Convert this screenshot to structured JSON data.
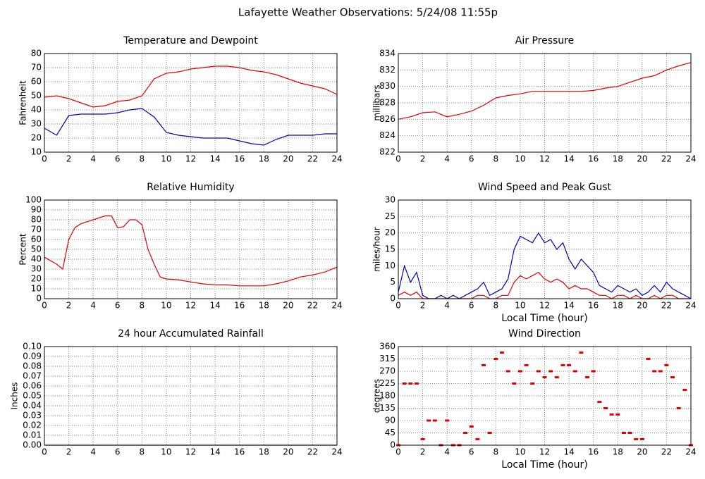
{
  "title": "Lafayette Weather Observations: 5/24/08 11:55p",
  "chart_data": [
    {
      "type": "line",
      "title": "Temperature and Dewpoint",
      "ylabel": "Fahrenheit",
      "x": [
        0,
        1,
        2,
        3,
        4,
        5,
        6,
        7,
        8,
        9,
        10,
        11,
        12,
        13,
        14,
        15,
        16,
        17,
        18,
        19,
        20,
        21,
        22,
        23,
        24
      ],
      "series": [
        {
          "color": "#e00000",
          "values": [
            49,
            50,
            48,
            45,
            42,
            43,
            46,
            47,
            50,
            62,
            66,
            67,
            69,
            70,
            71,
            71,
            70,
            68,
            67,
            65,
            62,
            59,
            57,
            55,
            51
          ]
        },
        {
          "color": "#0000c0",
          "values": [
            27,
            22,
            36,
            37,
            37,
            37,
            38,
            40,
            41,
            35,
            24,
            22,
            21,
            20,
            20,
            20,
            18,
            16,
            15,
            19,
            22,
            22,
            22,
            23,
            23
          ]
        }
      ],
      "xlim": [
        0,
        24
      ],
      "ylim": [
        10,
        80
      ],
      "xticks": [
        0,
        2,
        4,
        6,
        8,
        10,
        12,
        14,
        16,
        18,
        20,
        22,
        24
      ],
      "yticks": [
        10,
        20,
        30,
        40,
        50,
        60,
        70,
        80
      ],
      "grid": true
    },
    {
      "type": "line",
      "title": "Air Pressure",
      "ylabel": "millibars",
      "x": [
        0,
        1,
        2,
        3,
        4,
        5,
        6,
        7,
        8,
        9,
        10,
        11,
        12,
        13,
        14,
        15,
        16,
        17,
        18,
        19,
        20,
        21,
        22,
        23,
        24
      ],
      "series": [
        {
          "color": "#e00000",
          "values": [
            826,
            826.3,
            826.8,
            826.9,
            826.3,
            826.6,
            827,
            827.7,
            828.6,
            828.9,
            829.1,
            829.4,
            829.4,
            829.4,
            829.4,
            829.4,
            829.5,
            829.8,
            830,
            830.5,
            831,
            831.3,
            832,
            832.5,
            832.9
          ]
        }
      ],
      "xlim": [
        0,
        24
      ],
      "ylim": [
        822,
        834
      ],
      "xticks": [
        0,
        2,
        4,
        6,
        8,
        10,
        12,
        14,
        16,
        18,
        20,
        22,
        24
      ],
      "yticks": [
        822,
        824,
        826,
        828,
        830,
        832,
        834
      ],
      "grid": true
    },
    {
      "type": "line",
      "title": "Relative Humidity",
      "ylabel": "Percent",
      "x": [
        0,
        1,
        1.5,
        2,
        2.5,
        3,
        4,
        5,
        5.5,
        6,
        6.5,
        7,
        7.5,
        8,
        8.5,
        9,
        9.5,
        10,
        11,
        12,
        13,
        14,
        15,
        16,
        17,
        18,
        19,
        20,
        21,
        22,
        23,
        24
      ],
      "series": [
        {
          "color": "#e00000",
          "values": [
            42,
            35,
            30,
            60,
            72,
            76,
            80,
            84,
            84,
            72,
            73,
            80,
            80,
            75,
            50,
            35,
            22,
            20,
            19,
            17,
            15,
            14,
            14,
            13,
            13,
            13,
            15,
            18,
            22,
            24,
            27,
            32
          ]
        }
      ],
      "xlim": [
        0,
        24
      ],
      "ylim": [
        0,
        100
      ],
      "xticks": [
        0,
        2,
        4,
        6,
        8,
        10,
        12,
        14,
        16,
        18,
        20,
        22,
        24
      ],
      "yticks": [
        0,
        10,
        20,
        30,
        40,
        50,
        60,
        70,
        80,
        90,
        100
      ],
      "grid": true
    },
    {
      "type": "line",
      "title": "Wind Speed and Peak Gust",
      "ylabel": "miles/hour",
      "xlabel": "Local Time (hour)",
      "x": [
        0,
        0.5,
        1,
        1.5,
        2,
        2.5,
        3,
        3.5,
        4,
        4.5,
        5,
        5.5,
        6,
        6.5,
        7,
        7.5,
        8,
        8.5,
        9,
        9.5,
        10,
        10.5,
        11,
        11.5,
        12,
        12.5,
        13,
        13.5,
        14,
        14.5,
        15,
        15.5,
        16,
        16.5,
        17,
        17.5,
        18,
        18.5,
        19,
        19.5,
        20,
        20.5,
        21,
        21.5,
        22,
        22.5,
        23,
        23.5,
        24
      ],
      "series": [
        {
          "color": "#0000c0",
          "values": [
            2,
            10,
            5,
            8,
            1,
            0,
            0,
            1,
            0,
            1,
            0,
            1,
            2,
            3,
            5,
            1,
            2,
            3,
            6,
            15,
            19,
            18,
            17,
            20,
            17,
            18,
            15,
            17,
            12,
            9,
            12,
            10,
            8,
            4,
            3,
            2,
            4,
            3,
            2,
            3,
            1,
            2,
            4,
            2,
            5,
            3,
            2,
            1,
            0
          ]
        },
        {
          "color": "#e00000",
          "values": [
            1,
            2,
            1,
            2,
            0,
            0,
            0,
            0,
            0,
            0,
            0,
            0,
            0,
            1,
            1,
            0,
            0,
            1,
            1,
            5,
            7,
            6,
            7,
            8,
            6,
            5,
            6,
            5,
            3,
            4,
            3,
            3,
            2,
            1,
            1,
            0,
            1,
            1,
            0,
            1,
            0,
            0,
            1,
            0,
            1,
            1,
            0,
            0,
            0
          ]
        }
      ],
      "xlim": [
        0,
        24
      ],
      "ylim": [
        0,
        30
      ],
      "xticks": [
        0,
        2,
        4,
        6,
        8,
        10,
        12,
        14,
        16,
        18,
        20,
        22,
        24
      ],
      "yticks": [
        0,
        5,
        10,
        15,
        20,
        25,
        30
      ],
      "grid": true
    },
    {
      "type": "line",
      "title": "24 hour Accumulated Rainfall",
      "ylabel": "Inches",
      "x": [
        0,
        24
      ],
      "series": [
        {
          "color": "#e00000",
          "values": [
            0,
            0
          ]
        }
      ],
      "xlim": [
        0,
        24
      ],
      "ylim": [
        0,
        0.1
      ],
      "xticks": [
        0,
        2,
        4,
        6,
        8,
        10,
        12,
        14,
        16,
        18,
        20,
        22,
        24
      ],
      "yticks": [
        {
          "value": 0,
          "label": "0.00"
        },
        {
          "value": 0.01,
          "label": "0.01"
        },
        {
          "value": 0.02,
          "label": "0.02"
        },
        {
          "value": 0.03,
          "label": "0.03"
        },
        {
          "value": 0.04,
          "label": "0.04"
        },
        {
          "value": 0.05,
          "label": "0.05"
        },
        {
          "value": 0.06,
          "label": "0.06"
        },
        {
          "value": 0.07,
          "label": "0.07"
        },
        {
          "value": 0.08,
          "label": "0.08"
        },
        {
          "value": 0.09,
          "label": "0.09"
        },
        {
          "value": 0.1,
          "label": "0.10"
        }
      ],
      "grid": true
    },
    {
      "type": "scatter",
      "title": "Wind Direction",
      "ylabel": "degrees",
      "xlabel": "Local Time (hour)",
      "x": [
        0,
        0.5,
        1,
        1.5,
        2,
        2.5,
        3,
        3.5,
        4,
        4.5,
        5,
        5.5,
        6,
        6.5,
        7,
        7.5,
        8,
        8.5,
        9,
        9.5,
        10,
        10.5,
        11,
        11.5,
        12,
        12.5,
        13,
        13.5,
        14,
        14.5,
        15,
        15.5,
        16,
        16.5,
        17,
        17.5,
        18,
        18.5,
        19,
        19.5,
        20,
        20.5,
        21,
        21.5,
        22,
        22.5,
        23,
        23.5,
        24
      ],
      "series": [
        {
          "color": "#e00000",
          "values": [
            0,
            225,
            225,
            225,
            22,
            90,
            90,
            0,
            90,
            0,
            0,
            45,
            68,
            22,
            292,
            45,
            315,
            338,
            270,
            225,
            270,
            292,
            225,
            270,
            248,
            270,
            248,
            292,
            292,
            270,
            338,
            248,
            270,
            158,
            135,
            112,
            112,
            45,
            45,
            22,
            22,
            315,
            270,
            270,
            292,
            248,
            135,
            202,
            0
          ]
        }
      ],
      "xlim": [
        0,
        24
      ],
      "ylim": [
        0,
        360
      ],
      "xticks": [
        0,
        2,
        4,
        6,
        8,
        10,
        12,
        14,
        16,
        18,
        20,
        22,
        24
      ],
      "yticks": [
        0,
        45,
        90,
        135,
        180,
        225,
        270,
        315,
        360
      ],
      "grid": true
    }
  ]
}
